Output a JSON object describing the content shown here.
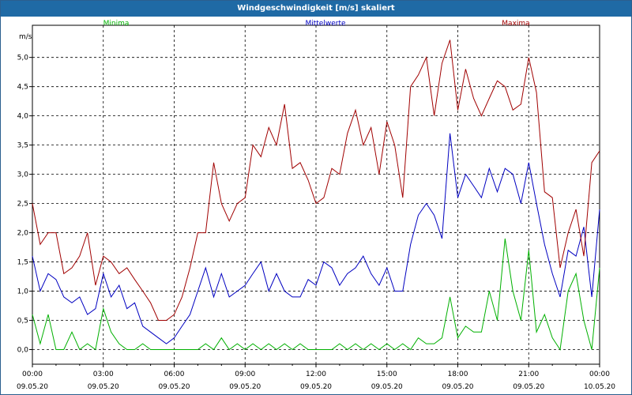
{
  "window": {
    "title": "Windgeschwindigkeit [m/s] skaliert"
  },
  "chart_data": {
    "type": "line",
    "title": "Windgeschwindigkeit [m/s] skaliert",
    "ylabel": "m/s",
    "xlabel": "",
    "ylim": [
      -0.25,
      5.55
    ],
    "xlim": [
      0,
      24
    ],
    "grid": true,
    "y_ticks": [
      "0,0",
      "0,5",
      "1,0",
      "1,5",
      "2,0",
      "2,5",
      "3,0",
      "3,5",
      "4,0",
      "4,5",
      "5,0"
    ],
    "y_tick_values": [
      0,
      0.5,
      1.0,
      1.5,
      2.0,
      2.5,
      3.0,
      3.5,
      4.0,
      4.5,
      5.0
    ],
    "x_tick_values": [
      0,
      3,
      6,
      9,
      12,
      15,
      18,
      21,
      24
    ],
    "x_tick_labels": [
      {
        "time": "00:00",
        "date": "09.05.20"
      },
      {
        "time": "03:00",
        "date": "09.05.20"
      },
      {
        "time": "06:00",
        "date": "09.05.20"
      },
      {
        "time": "09:00",
        "date": "09.05.20"
      },
      {
        "time": "12:00",
        "date": "09.05.20"
      },
      {
        "time": "15:00",
        "date": "09.05.20"
      },
      {
        "time": "18:00",
        "date": "09.05.20"
      },
      {
        "time": "21:00",
        "date": "09.05.20"
      },
      {
        "time": "00:00",
        "date": "10.05.20"
      }
    ],
    "legend_placement": "top",
    "series": [
      {
        "name": "Minima",
        "color": "#00b000",
        "x": [
          0.0,
          0.33,
          0.67,
          1.0,
          1.33,
          1.67,
          2.0,
          2.33,
          2.67,
          3.0,
          3.33,
          3.67,
          4.0,
          4.33,
          4.67,
          5.0,
          5.33,
          5.67,
          6.0,
          6.33,
          6.67,
          7.0,
          7.33,
          7.67,
          8.0,
          8.33,
          8.67,
          9.0,
          9.33,
          9.67,
          10.0,
          10.33,
          10.67,
          11.0,
          11.33,
          11.67,
          12.0,
          12.33,
          12.67,
          13.0,
          13.33,
          13.67,
          14.0,
          14.33,
          14.67,
          15.0,
          15.33,
          15.67,
          16.0,
          16.33,
          16.67,
          17.0,
          17.33,
          17.67,
          18.0,
          18.33,
          18.67,
          19.0,
          19.33,
          19.67,
          20.0,
          20.33,
          20.67,
          21.0,
          21.33,
          21.67,
          22.0,
          22.33,
          22.67,
          23.0,
          23.33,
          23.67,
          24.0
        ],
        "values": [
          0.6,
          0.1,
          0.6,
          0.0,
          0.0,
          0.3,
          0.0,
          0.1,
          0.0,
          0.7,
          0.3,
          0.1,
          0.0,
          0.0,
          0.1,
          0.0,
          0.0,
          0.0,
          0.0,
          0.0,
          0.0,
          0.0,
          0.1,
          0.0,
          0.2,
          0.0,
          0.1,
          0.0,
          0.1,
          0.0,
          0.1,
          0.0,
          0.1,
          0.0,
          0.1,
          0.0,
          0.0,
          0.0,
          0.0,
          0.1,
          0.0,
          0.1,
          0.0,
          0.1,
          0.0,
          0.1,
          0.0,
          0.1,
          0.0,
          0.2,
          0.1,
          0.1,
          0.2,
          0.9,
          0.2,
          0.4,
          0.3,
          0.3,
          1.0,
          0.5,
          1.9,
          1.0,
          0.5,
          1.7,
          0.3,
          0.6,
          0.2,
          0.0,
          1.0,
          1.3,
          0.5,
          0.0,
          1.4
        ]
      },
      {
        "name": "Mittelwerte",
        "color": "#0000c0",
        "x": [
          0.0,
          0.33,
          0.67,
          1.0,
          1.33,
          1.67,
          2.0,
          2.33,
          2.67,
          3.0,
          3.33,
          3.67,
          4.0,
          4.33,
          4.67,
          5.0,
          5.33,
          5.67,
          6.0,
          6.33,
          6.67,
          7.0,
          7.33,
          7.67,
          8.0,
          8.33,
          8.67,
          9.0,
          9.33,
          9.67,
          10.0,
          10.33,
          10.67,
          11.0,
          11.33,
          11.67,
          12.0,
          12.33,
          12.67,
          13.0,
          13.33,
          13.67,
          14.0,
          14.33,
          14.67,
          15.0,
          15.33,
          15.67,
          16.0,
          16.33,
          16.67,
          17.0,
          17.33,
          17.67,
          18.0,
          18.33,
          18.67,
          19.0,
          19.33,
          19.67,
          20.0,
          20.33,
          20.67,
          21.0,
          21.33,
          21.67,
          22.0,
          22.33,
          22.67,
          23.0,
          23.33,
          23.67,
          24.0
        ],
        "values": [
          1.6,
          1.0,
          1.3,
          1.2,
          0.9,
          0.8,
          0.9,
          0.6,
          0.7,
          1.3,
          0.9,
          1.1,
          0.7,
          0.8,
          0.4,
          0.3,
          0.2,
          0.1,
          0.2,
          0.4,
          0.6,
          1.0,
          1.4,
          0.9,
          1.3,
          0.9,
          1.0,
          1.1,
          1.3,
          1.5,
          1.0,
          1.3,
          1.0,
          0.9,
          0.9,
          1.2,
          1.1,
          1.5,
          1.4,
          1.1,
          1.3,
          1.4,
          1.6,
          1.3,
          1.1,
          1.4,
          1.0,
          1.0,
          1.8,
          2.3,
          2.5,
          2.3,
          1.9,
          3.7,
          2.6,
          3.0,
          2.8,
          2.6,
          3.1,
          2.7,
          3.1,
          3.0,
          2.5,
          3.2,
          2.5,
          1.8,
          1.3,
          0.9,
          1.7,
          1.6,
          2.1,
          0.9,
          2.4
        ]
      },
      {
        "name": "Maxima",
        "color": "#a00000",
        "x": [
          0.0,
          0.33,
          0.67,
          1.0,
          1.33,
          1.67,
          2.0,
          2.33,
          2.67,
          3.0,
          3.33,
          3.67,
          4.0,
          4.33,
          4.67,
          5.0,
          5.33,
          5.67,
          6.0,
          6.33,
          6.67,
          7.0,
          7.33,
          7.67,
          8.0,
          8.33,
          8.67,
          9.0,
          9.33,
          9.67,
          10.0,
          10.33,
          10.67,
          11.0,
          11.33,
          11.67,
          12.0,
          12.33,
          12.67,
          13.0,
          13.33,
          13.67,
          14.0,
          14.33,
          14.67,
          15.0,
          15.33,
          15.67,
          16.0,
          16.33,
          16.67,
          17.0,
          17.33,
          17.67,
          18.0,
          18.33,
          18.67,
          19.0,
          19.33,
          19.67,
          20.0,
          20.33,
          20.67,
          21.0,
          21.33,
          21.67,
          22.0,
          22.33,
          22.67,
          23.0,
          23.33,
          23.67,
          24.0
        ],
        "values": [
          2.5,
          1.8,
          2.0,
          2.0,
          1.3,
          1.4,
          1.6,
          2.0,
          1.1,
          1.6,
          1.5,
          1.3,
          1.4,
          1.2,
          1.0,
          0.8,
          0.5,
          0.5,
          0.6,
          0.9,
          1.4,
          2.0,
          2.0,
          3.2,
          2.5,
          2.2,
          2.5,
          2.6,
          3.5,
          3.3,
          3.8,
          3.5,
          4.2,
          3.1,
          3.2,
          2.9,
          2.5,
          2.6,
          3.1,
          3.0,
          3.7,
          4.1,
          3.5,
          3.8,
          3.0,
          3.9,
          3.5,
          2.6,
          4.5,
          4.7,
          5.0,
          4.0,
          4.9,
          5.3,
          4.1,
          4.8,
          4.3,
          4.0,
          4.3,
          4.6,
          4.5,
          4.1,
          4.2,
          5.0,
          4.4,
          2.7,
          2.6,
          1.4,
          2.0,
          2.4,
          1.6,
          3.2,
          3.4
        ]
      }
    ]
  }
}
